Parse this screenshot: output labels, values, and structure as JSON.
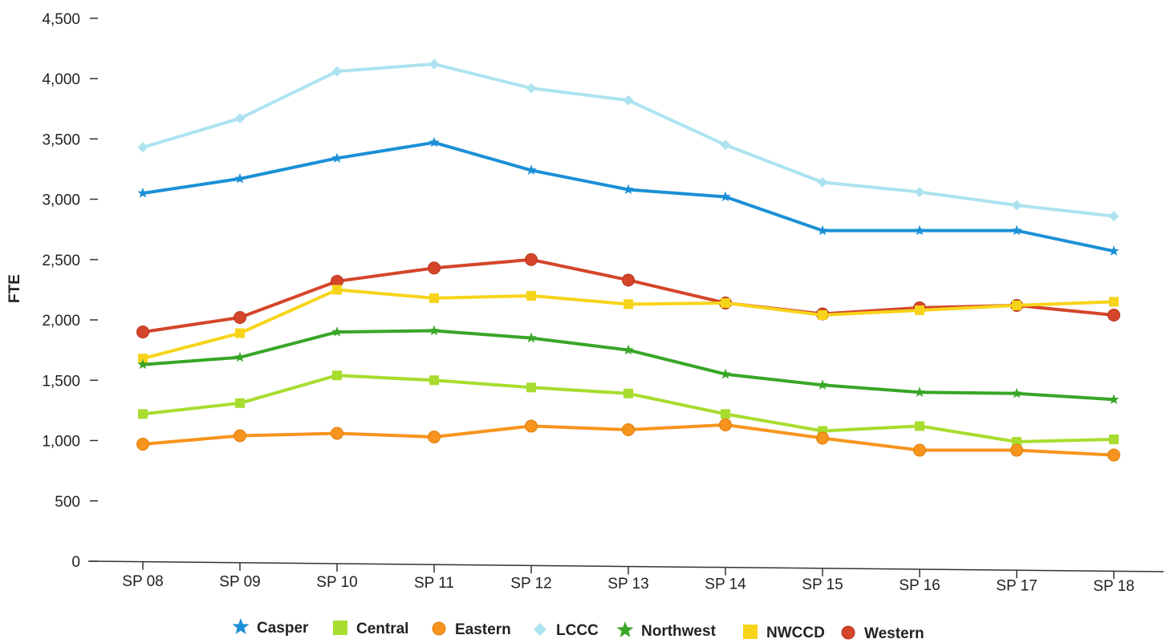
{
  "chart_data": {
    "type": "line",
    "title": "",
    "xlabel": "",
    "ylabel": "FTE",
    "ylim": [
      0,
      4500
    ],
    "yticks": [
      "0",
      "500",
      "1,000",
      "1,500",
      "2,000",
      "2,500",
      "3,000",
      "3,500",
      "4,000",
      "4,500"
    ],
    "categories": [
      "SP 08",
      "SP 09",
      "SP 10",
      "SP 11",
      "SP 12",
      "SP 13",
      "SP 14",
      "SP 15",
      "SP 16",
      "SP 17",
      "SP 18"
    ],
    "grid": false,
    "legend_position": "bottom",
    "series": [
      {
        "name": "LCCC",
        "color": "#ade3f0",
        "marker": "diamond",
        "values": [
          3430,
          3670,
          4060,
          4120,
          3920,
          3820,
          3450,
          3140,
          3060,
          2950,
          2860
        ]
      },
      {
        "name": "Casper",
        "color": "#1b90d6",
        "marker": "star",
        "values": [
          3050,
          3170,
          3340,
          3470,
          3240,
          3080,
          3020,
          2740,
          2740,
          2740,
          2570
        ]
      },
      {
        "name": "Western",
        "color": "#d5452a",
        "marker": "circle",
        "values": [
          1900,
          2020,
          2320,
          2430,
          2500,
          2330,
          2140,
          2050,
          2100,
          2120,
          2040
        ]
      },
      {
        "name": "NWCCD",
        "color": "#f7d41a",
        "marker": "square",
        "values": [
          1680,
          1890,
          2250,
          2180,
          2200,
          2130,
          2140,
          2040,
          2080,
          2120,
          2150
        ]
      },
      {
        "name": "Northwest",
        "color": "#38a627",
        "marker": "star",
        "values": [
          1630,
          1690,
          1900,
          1910,
          1850,
          1750,
          1550,
          1460,
          1400,
          1390,
          1340
        ]
      },
      {
        "name": "Central",
        "color": "#a8dc2e",
        "marker": "square",
        "values": [
          1220,
          1310,
          1540,
          1500,
          1440,
          1390,
          1220,
          1080,
          1120,
          990,
          1010
        ]
      },
      {
        "name": "Eastern",
        "color": "#f7941d",
        "marker": "circle",
        "values": [
          970,
          1040,
          1060,
          1030,
          1120,
          1090,
          1130,
          1020,
          920,
          920,
          880
        ]
      }
    ],
    "legend": [
      {
        "name": "Casper",
        "color": "#1b90d6",
        "marker": "star"
      },
      {
        "name": "Central",
        "color": "#a8dc2e",
        "marker": "square"
      },
      {
        "name": "Eastern",
        "color": "#f7941d",
        "marker": "circle"
      },
      {
        "name": "LCCC",
        "color": "#ade3f0",
        "marker": "diamond"
      },
      {
        "name": "Northwest",
        "color": "#38a627",
        "marker": "star"
      },
      {
        "name": "NWCCD",
        "color": "#f7d41a",
        "marker": "square"
      },
      {
        "name": "Western",
        "color": "#d5452a",
        "marker": "circle"
      }
    ]
  }
}
